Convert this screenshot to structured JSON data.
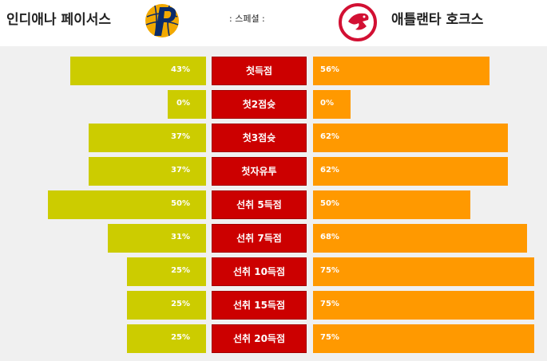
{
  "header": {
    "home_team": "인디애나 페이서스",
    "away_team": "애틀랜타 호크스",
    "special_label": ": 스페셜 :"
  },
  "logos": {
    "home": "pacers-logo",
    "away": "hawks-logo"
  },
  "colors": {
    "home_bar": "#cccc00",
    "away_bar": "#ff9900",
    "label_box": "#cc0000"
  },
  "rows": [
    {
      "label": "첫득점",
      "home": "43%",
      "away": "56%",
      "home_value": 43,
      "away_value": 56
    },
    {
      "label": "첫2점슛",
      "home": "0%",
      "away": "0%",
      "home_value": 0,
      "away_value": 0
    },
    {
      "label": "첫3점슛",
      "home": "37%",
      "away": "62%",
      "home_value": 37,
      "away_value": 62
    },
    {
      "label": "첫자유투",
      "home": "37%",
      "away": "62%",
      "home_value": 37,
      "away_value": 62
    },
    {
      "label": "선취 5득점",
      "home": "50%",
      "away": "50%",
      "home_value": 50,
      "away_value": 50
    },
    {
      "label": "선취 7득점",
      "home": "31%",
      "away": "68%",
      "home_value": 31,
      "away_value": 68
    },
    {
      "label": "선취 10득점",
      "home": "25%",
      "away": "75%",
      "home_value": 25,
      "away_value": 75
    },
    {
      "label": "선취 15득점",
      "home": "25%",
      "away": "75%",
      "home_value": 25,
      "away_value": 75
    },
    {
      "label": "선취 20득점",
      "home": "25%",
      "away": "75%",
      "home_value": 25,
      "away_value": 75
    }
  ]
}
